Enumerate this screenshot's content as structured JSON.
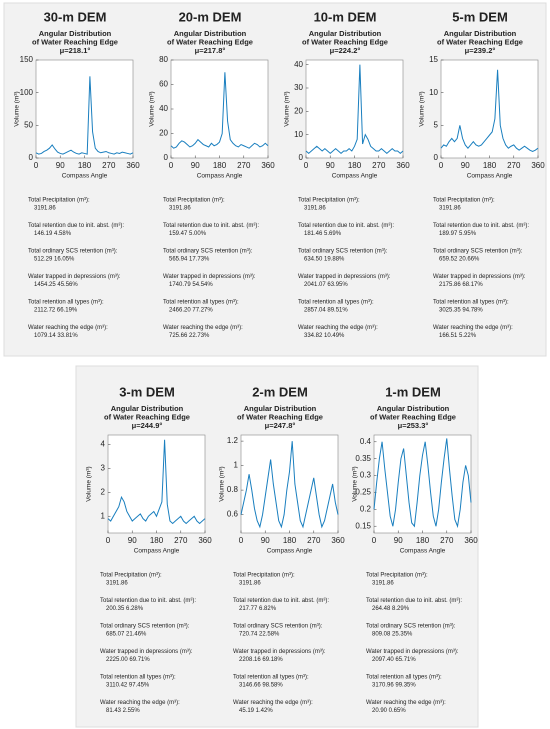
{
  "chart_data": [
    {
      "type": "line",
      "panel_title": "30-m DEM",
      "title": [
        "Angular Distribution",
        "of Water Reaching Edge"
      ],
      "subtitle": "μ=218.1°",
      "x_label": "Compass Angle",
      "y_label": "Volume (m³)",
      "color": "#1a7fbf",
      "x": [
        0,
        10,
        20,
        30,
        40,
        50,
        60,
        70,
        80,
        90,
        100,
        110,
        120,
        130,
        140,
        150,
        160,
        170,
        180,
        190,
        200,
        210,
        220,
        230,
        240,
        250,
        260,
        270,
        280,
        290,
        300,
        310,
        320,
        330,
        340,
        350,
        360
      ],
      "values": [
        8,
        6,
        7,
        10,
        12,
        15,
        20,
        14,
        9,
        7,
        6,
        8,
        10,
        12,
        9,
        7,
        6,
        8,
        7,
        6,
        125,
        40,
        15,
        10,
        8,
        9,
        10,
        8,
        7,
        6,
        8,
        7,
        9,
        8,
        7,
        6,
        8
      ],
      "xlim": [
        0,
        360
      ],
      "xticks": [
        0,
        90,
        180,
        270,
        360
      ],
      "ylim": [
        0,
        150
      ],
      "yticks": [
        0,
        50,
        100,
        150
      ],
      "stat_labels": [
        "Total Precipitation (m³):",
        "Total retention due to init. abst. (m³):",
        "Total ordinary SCS retention (m³):",
        "Water trapped in depressions (m³):",
        "Total retention all types (m³):",
        "Water reaching the edge (m³):"
      ],
      "stat_values": [
        "3191.86",
        "146.19 4.58%",
        "512.29 16.05%",
        "1454.25 45.56%",
        "2112.72 66.19%",
        "1079.14 33.81%"
      ]
    },
    {
      "type": "line",
      "panel_title": "20-m DEM",
      "title": [
        "Angular Distribution",
        "of Water Reaching Edge"
      ],
      "subtitle": "μ=217.8°",
      "x_label": "Compass Angle",
      "y_label": "Volume (m³)",
      "color": "#1a7fbf",
      "x": [
        0,
        10,
        20,
        30,
        40,
        50,
        60,
        70,
        80,
        90,
        100,
        110,
        120,
        130,
        140,
        150,
        160,
        170,
        180,
        190,
        200,
        210,
        220,
        230,
        240,
        250,
        260,
        270,
        280,
        290,
        300,
        310,
        320,
        330,
        340,
        350,
        360
      ],
      "values": [
        10,
        8,
        9,
        12,
        14,
        13,
        11,
        9,
        10,
        12,
        15,
        13,
        11,
        10,
        9,
        12,
        10,
        11,
        13,
        20,
        70,
        30,
        15,
        12,
        10,
        9,
        11,
        10,
        9,
        8,
        10,
        12,
        11,
        9,
        10,
        12,
        10
      ],
      "xlim": [
        0,
        360
      ],
      "xticks": [
        0,
        90,
        180,
        270,
        360
      ],
      "ylim": [
        0,
        80
      ],
      "yticks": [
        0,
        20,
        40,
        60,
        80
      ],
      "stat_labels": [
        "Total Precipitation (m³):",
        "Total retention due to init. abst. (m³):",
        "Total ordinary SCS retention (m³):",
        "Water trapped in depressions (m³):",
        "Total retention all types (m³):",
        "Water reaching the edge (m³):"
      ],
      "stat_values": [
        "3191.86",
        "159.47 5.00%",
        "565.94 17.73%",
        "1740.79 54.54%",
        "2466.20 77.27%",
        "725.66 22.73%"
      ]
    },
    {
      "type": "line",
      "panel_title": "10-m DEM",
      "title": [
        "Angular Distribution",
        "of Water Reaching Edge"
      ],
      "subtitle": "μ=224.2°",
      "x_label": "Compass Angle",
      "y_label": "Volume (m³)",
      "color": "#1a7fbf",
      "x": [
        0,
        10,
        20,
        30,
        40,
        50,
        60,
        70,
        80,
        90,
        100,
        110,
        120,
        130,
        140,
        150,
        160,
        170,
        180,
        190,
        200,
        210,
        220,
        230,
        240,
        250,
        260,
        270,
        280,
        290,
        300,
        310,
        320,
        330,
        340,
        350,
        360
      ],
      "values": [
        3,
        2,
        3,
        4,
        5,
        4,
        3,
        4,
        3,
        2,
        3,
        4,
        3,
        2,
        3,
        3,
        4,
        3,
        5,
        8,
        40,
        6,
        10,
        8,
        5,
        4,
        3,
        3,
        4,
        3,
        2,
        3,
        4,
        3,
        3,
        2,
        3
      ],
      "xlim": [
        0,
        360
      ],
      "xticks": [
        0,
        90,
        180,
        270,
        360
      ],
      "ylim": [
        0,
        42
      ],
      "yticks": [
        0,
        10,
        20,
        30,
        40
      ],
      "stat_labels": [
        "Total Precipitation (m³):",
        "Total retention due to init. abst. (m³):",
        "Total ordinary SCS retention (m³):",
        "Water trapped in depressions (m³):",
        "Total retention all types (m³):",
        "Water reaching the edge (m³):"
      ],
      "stat_values": [
        "3191.86",
        "181.46 5.69%",
        "634.50 19.88%",
        "2041.07 63.95%",
        "2857.04 89.51%",
        "334.82 10.49%"
      ]
    },
    {
      "type": "line",
      "panel_title": "5-m DEM",
      "title": [
        "Angular Distribution",
        "of Water Reaching Edge"
      ],
      "subtitle": "μ=239.2°",
      "x_label": "Compass Angle",
      "y_label": "Volume (m³)",
      "color": "#1a7fbf",
      "x": [
        0,
        10,
        20,
        30,
        40,
        50,
        60,
        70,
        80,
        90,
        100,
        110,
        120,
        130,
        140,
        150,
        160,
        170,
        180,
        190,
        200,
        210,
        220,
        230,
        240,
        250,
        260,
        270,
        280,
        290,
        300,
        310,
        320,
        330,
        340,
        350,
        360
      ],
      "values": [
        1.5,
        2,
        1.8,
        2.5,
        3,
        2.5,
        3,
        5,
        3,
        2,
        1.5,
        2,
        2.5,
        2,
        1.8,
        2,
        2.5,
        3,
        3.5,
        4,
        6,
        13.5,
        5,
        3,
        2,
        1.5,
        1.8,
        2,
        1.5,
        1.2,
        1.5,
        1.8,
        1.5,
        1.2,
        1,
        1.2,
        1.5
      ],
      "xlim": [
        0,
        360
      ],
      "xticks": [
        0,
        90,
        180,
        270,
        360
      ],
      "ylim": [
        0,
        15
      ],
      "yticks": [
        0,
        5,
        10,
        15
      ],
      "stat_labels": [
        "Total Precipitation (m³):",
        "Total retention due to init. abst. (m³):",
        "Total ordinary SCS retention (m³):",
        "Water trapped in depressions (m³):",
        "Total retention all types (m³):",
        "Water reaching the edge (m³):"
      ],
      "stat_values": [
        "3191.86",
        "189.97 5.95%",
        "659.52 20.66%",
        "2175.86 68.17%",
        "3025.35 94.78%",
        "166.51 5.22%"
      ]
    },
    {
      "type": "line",
      "panel_title": "3-m DEM",
      "title": [
        "Angular Distribution",
        "of Water Reaching Edge"
      ],
      "subtitle": "μ=244.9°",
      "x_label": "Compass Angle",
      "y_label": "Volume (m³)",
      "color": "#1a7fbf",
      "x": [
        0,
        10,
        20,
        30,
        40,
        50,
        60,
        70,
        80,
        90,
        100,
        110,
        120,
        130,
        140,
        150,
        160,
        170,
        180,
        190,
        200,
        210,
        220,
        230,
        240,
        250,
        260,
        270,
        280,
        290,
        300,
        310,
        320,
        330,
        340,
        350,
        360
      ],
      "values": [
        0.9,
        0.8,
        1,
        1.2,
        1.4,
        1.8,
        1.6,
        1.2,
        1,
        0.8,
        0.9,
        1,
        1.1,
        0.9,
        0.8,
        1,
        1.1,
        1.2,
        1,
        1.3,
        1.6,
        4.2,
        1.5,
        0.8,
        0.7,
        0.8,
        0.9,
        1,
        0.8,
        0.7,
        0.8,
        0.9,
        1,
        0.8,
        0.7,
        0.8,
        0.9
      ],
      "xlim": [
        0,
        360
      ],
      "xticks": [
        0,
        90,
        180,
        270,
        360
      ],
      "ylim": [
        0.3,
        4.4
      ],
      "yticks": [
        1,
        2,
        3,
        4
      ],
      "stat_labels": [
        "Total Precipitation (m³):",
        "Total retention due to init. abst. (m³):",
        "Total ordinary SCS retention (m³):",
        "Water trapped in depressions (m³):",
        "Total retention all types (m³):",
        "Water reaching the edge (m³):"
      ],
      "stat_values": [
        "3191.86",
        "200.35 6.28%",
        "685.07 21.46%",
        "2225.00 69.71%",
        "3110.42 97.45%",
        "81.43 2.55%"
      ]
    },
    {
      "type": "line",
      "panel_title": "2-m DEM",
      "title": [
        "Angular Distribution",
        "of Water Reaching Edge"
      ],
      "subtitle": "μ=247.8°",
      "x_label": "Compass Angle",
      "y_label": "Volume (m³)",
      "color": "#1a7fbf",
      "x": [
        0,
        10,
        20,
        30,
        40,
        50,
        60,
        70,
        80,
        90,
        100,
        110,
        120,
        130,
        140,
        150,
        160,
        170,
        180,
        190,
        200,
        210,
        220,
        230,
        240,
        250,
        260,
        270,
        280,
        290,
        300,
        310,
        320,
        330,
        340,
        350,
        360
      ],
      "values": [
        0.6,
        0.7,
        0.8,
        0.93,
        0.8,
        0.65,
        0.55,
        0.5,
        0.6,
        0.75,
        0.9,
        1.05,
        0.85,
        0.7,
        0.55,
        0.5,
        0.6,
        0.8,
        0.95,
        1.2,
        0.85,
        0.7,
        0.55,
        0.5,
        0.6,
        0.7,
        0.8,
        0.9,
        0.75,
        0.6,
        0.5,
        0.55,
        0.65,
        0.75,
        0.85,
        0.7,
        0.6
      ],
      "xlim": [
        0,
        360
      ],
      "xticks": [
        0,
        90,
        180,
        270,
        360
      ],
      "ylim": [
        0.45,
        1.25
      ],
      "yticks": [
        0.6,
        0.8,
        1,
        1.2
      ],
      "stat_labels": [
        "Total Precipitation (m³):",
        "Total retention due to init. abst. (m³):",
        "Total ordinary SCS retention (m³):",
        "Water trapped in depressions (m³):",
        "Total retention all types (m³):",
        "Water reaching the edge (m³):"
      ],
      "stat_values": [
        "3191.86",
        "217.77 6.82%",
        "720.74 22.58%",
        "2208.16 69.18%",
        "3146.66 98.58%",
        "45.19 1.42%"
      ]
    },
    {
      "type": "line",
      "panel_title": "1-m DEM",
      "title": [
        "Angular Distribution",
        "of Water Reaching Edge"
      ],
      "subtitle": "μ=253.3°",
      "x_label": "Compass Angle",
      "y_label": "Volume (m³)",
      "color": "#1a7fbf",
      "x": [
        0,
        10,
        20,
        30,
        40,
        50,
        60,
        70,
        80,
        90,
        100,
        110,
        120,
        130,
        140,
        150,
        160,
        170,
        180,
        190,
        200,
        210,
        220,
        230,
        240,
        250,
        260,
        270,
        280,
        290,
        300,
        310,
        320,
        330,
        340,
        350,
        360
      ],
      "values": [
        0.2,
        0.28,
        0.35,
        0.4,
        0.32,
        0.25,
        0.18,
        0.15,
        0.2,
        0.28,
        0.35,
        0.38,
        0.3,
        0.22,
        0.16,
        0.15,
        0.22,
        0.3,
        0.36,
        0.4,
        0.33,
        0.25,
        0.18,
        0.15,
        0.2,
        0.28,
        0.35,
        0.41,
        0.32,
        0.24,
        0.17,
        0.15,
        0.2,
        0.28,
        0.33,
        0.3,
        0.22
      ],
      "xlim": [
        0,
        360
      ],
      "xticks": [
        0,
        90,
        180,
        270,
        360
      ],
      "ylim": [
        0.13,
        0.42
      ],
      "yticks": [
        0.15,
        0.2,
        0.25,
        0.3,
        0.35,
        0.4
      ],
      "stat_labels": [
        "Total Precipitation (m³):",
        "Total retention due to init. abst. (m³):",
        "Total ordinary SCS retention (m³):",
        "Water trapped in depressions (m³):",
        "Total retention all types (m³):",
        "Water reaching the edge (m³):"
      ],
      "stat_values": [
        "3191.86",
        "264.48 8.29%",
        "809.08 25.35%",
        "2097.40 65.71%",
        "3170.96 99.35%",
        "20.90 0.65%"
      ]
    }
  ]
}
